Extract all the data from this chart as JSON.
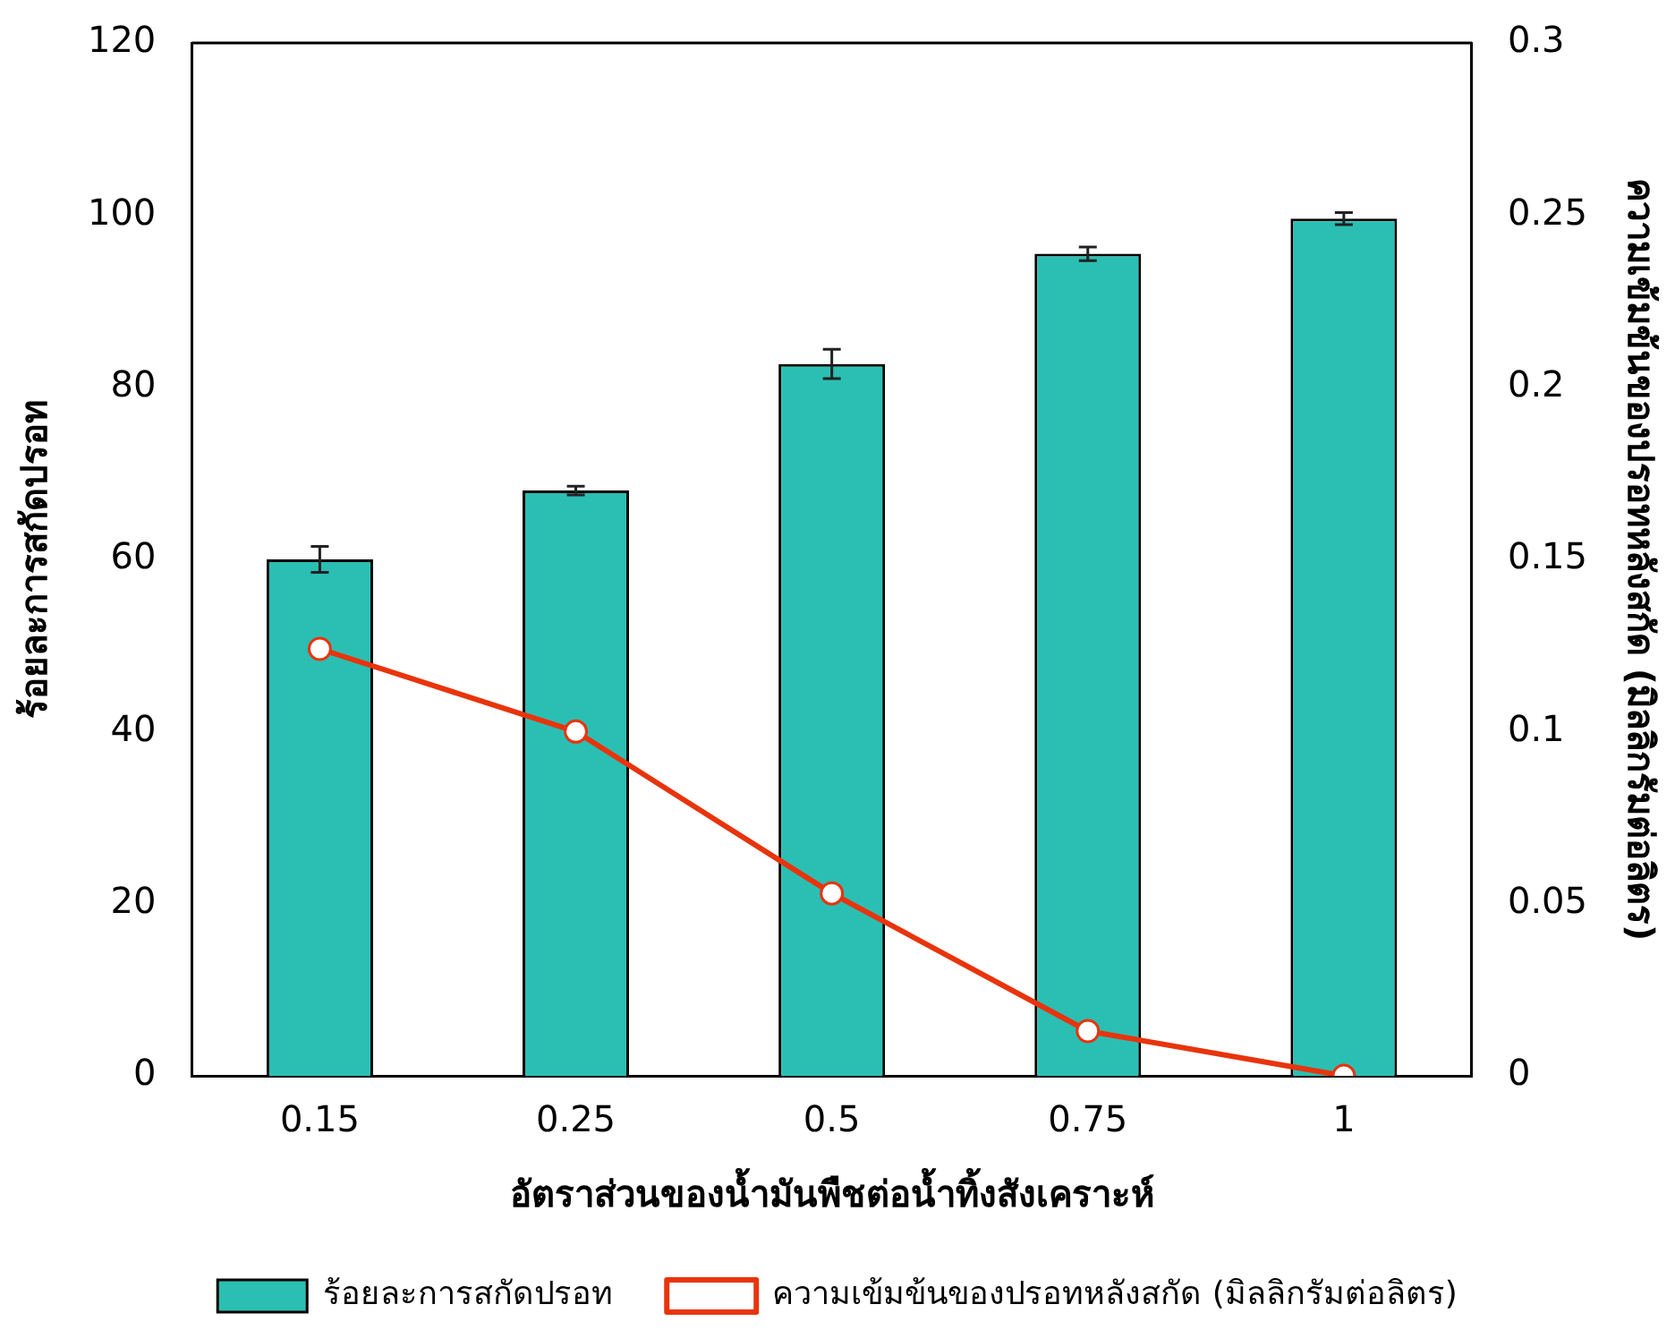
{
  "chart_data": {
    "type": "bar",
    "xlabel": "อัตราส่วนของน้ำมันพืชต่อน้ำทิ้งสังเคราะห์",
    "ylabel": "ร้อยละการสกัดปรอท",
    "y2label": "ความเข้มข้นของปรอทหลังสกัด (มิลลิกรัมต่อลิตร)",
    "categories": [
      "0.15",
      "0.25",
      "0.5",
      "0.75",
      "1"
    ],
    "series": [
      {
        "name": "ร้อยละการสกัดปรอท",
        "color": "#2bbfb3",
        "values": [
          60,
          68,
          82.7,
          95.5,
          99.6
        ],
        "errors": [
          1.5,
          0.5,
          1.7,
          0.8,
          0.7
        ]
      },
      {
        "name": "ความเข้มข้นของปรอทหลังสกัด (มิลลิกรัมต่อลิตร)",
        "type": "line",
        "axis": "y2",
        "color": "#e8340c",
        "values": [
          0.124,
          0.1,
          0.053,
          0.013,
          0
        ]
      }
    ],
    "ylim": [
      0,
      120
    ],
    "yticks": [
      0,
      20,
      40,
      60,
      80,
      100,
      120
    ],
    "y2lim": [
      0,
      0.3
    ],
    "y2ticks": [
      0,
      0.05,
      0.1,
      0.15,
      0.2,
      0.25,
      0.3
    ],
    "grid": false,
    "legend": "bottom",
    "marker": "circle",
    "line_style": "solid"
  }
}
